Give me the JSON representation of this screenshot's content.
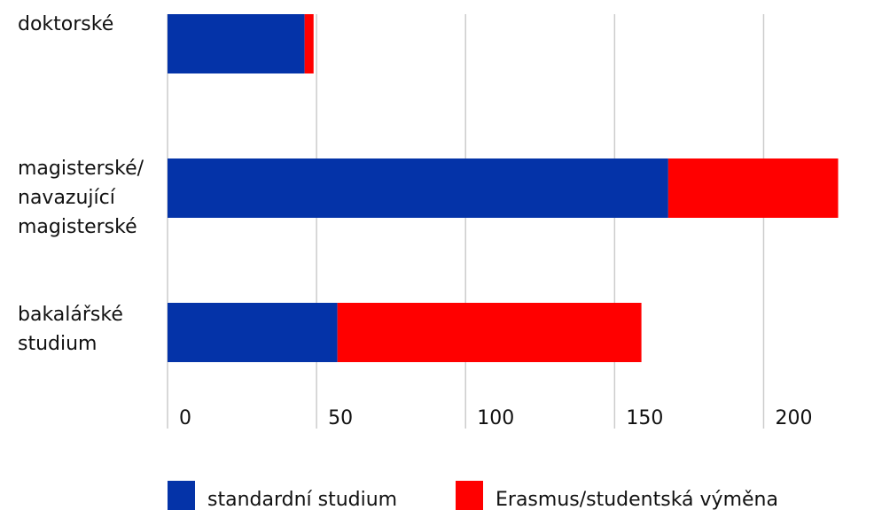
{
  "chart_data": {
    "type": "bar",
    "orientation": "horizontal",
    "stacked": true,
    "categories": [
      [
        "doktorské"
      ],
      [
        "magisterské/",
        "navazující",
        "magisterské"
      ],
      [
        "bakalářské",
        "studium"
      ]
    ],
    "series": [
      {
        "name": "standardní studium",
        "color": "#0433a8",
        "values": [
          46,
          168,
          57
        ]
      },
      {
        "name": "Erasmus/studentská výměna",
        "color": "#ff0000",
        "values": [
          3,
          57,
          102
        ]
      }
    ],
    "xlim": [
      0,
      225
    ],
    "ticks": [
      0,
      50,
      100,
      150,
      200
    ],
    "tick_labels": [
      "0",
      "50",
      "100",
      "150",
      "200"
    ],
    "grid": true,
    "legend_position": "bottom"
  }
}
